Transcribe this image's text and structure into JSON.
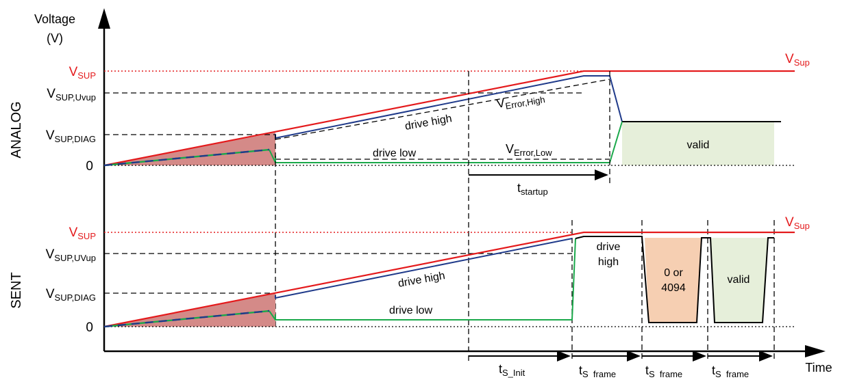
{
  "axes": {
    "y_title_line1": "Voltage",
    "y_title_line2": "(V)",
    "x_title": "Time"
  },
  "analog": {
    "section_label": "ANALOG",
    "levels": {
      "vsup_main": "V",
      "vsup_sub": "SUP",
      "uvup_main": "V",
      "uvup_sub": "SUP,Uvup",
      "diag_main": "V",
      "diag_sub": "SUP,DIAG",
      "zero": "0"
    },
    "vsup_right_main": "V",
    "vsup_right_sub": "Sup",
    "drive_high": "drive high",
    "drive_low": "drive low",
    "verror_high_main": "V",
    "verror_high_sub": "Error,High",
    "verror_low_main": "V",
    "verror_low_sub": "Error,Low",
    "valid": "valid",
    "t_startup_main": "t",
    "t_startup_sub": "startup"
  },
  "sent": {
    "section_label": "SENT",
    "levels": {
      "vsup_main": "V",
      "vsup_sub": "SUP",
      "uvup_main": "V",
      "uvup_sub": "SUP,UVup",
      "diag_main": "V",
      "diag_sub": "SUP,DIAG",
      "zero": "0"
    },
    "vsup_right_main": "V",
    "vsup_right_sub": "Sup",
    "drive_high": "drive high",
    "drive_low": "drive low",
    "drive_high_box_line1": "drive",
    "drive_high_box_line2": "high",
    "frame_value_line1": "0 or",
    "frame_value_line2": "4094",
    "valid": "valid",
    "t_init_main": "t",
    "t_init_sub": "S_Init",
    "t_frame_main": "t",
    "t_frame_sub": "S  frame"
  },
  "colors": {
    "vsup": "#e41a1c",
    "drive_high": "#1f3a8a",
    "drive_low": "#1aa84a",
    "ramp_fill": "#d48a88",
    "valid_fill": "#e6efda",
    "error_fill": "#f6cfb2"
  }
}
